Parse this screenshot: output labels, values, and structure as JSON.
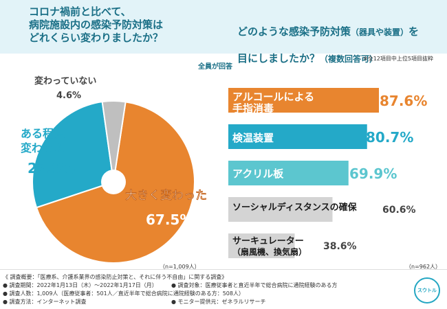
{
  "left_question": "コロナ禍前と比べて、\n病院施設内の感染予防対策は\nどれくらい変わりましたか？",
  "right_question": {
    "main": "どのような感染予防対策",
    "paren": "（器具や装置）",
    "after": "を",
    "line2": "目にしましたか？",
    "line2_sub": "（複数回答可）"
  },
  "top_note": "※全12項目中上位5項目抜粋",
  "badge": "全員が回答",
  "n_left": "（n=1,009人）",
  "n_right": "（n=962人）",
  "colors": {
    "orange": "#e8852f",
    "teal": "#24a9c8",
    "light_teal": "#5cc6cf",
    "gray": "#bfbfbf",
    "light_gray": "#d4d4d4",
    "title": "#1a6f86"
  },
  "chart_data": [
    {
      "type": "pie",
      "categories": [
        "大きく変わった",
        "ある程度変わった",
        "変わっていない"
      ],
      "values": [
        67.5,
        27.9,
        4.6
      ],
      "unit": "%"
    },
    {
      "type": "bar",
      "orientation": "horizontal",
      "categories": [
        "アルコールによる手指消毒",
        "検温装置",
        "アクリル板",
        "ソーシャルディスタンスの確保",
        "サーキュレーター（扇風機、換気扇）"
      ],
      "values": [
        87.6,
        80.7,
        69.9,
        60.6,
        38.6
      ],
      "unit": "%"
    }
  ],
  "footer": {
    "summary": "《 調査概要：「医療系、介護系業界の感染防止対策と、それに伴う不自由」に関する調査》",
    "period": "● 調査期間：2022年1月13日（木）〜2022年1月17日（月）",
    "target": "● 調査対象：医療従事者と直近半年で総合病院に通院経験のある方",
    "count": "● 調査人数：1,009人（医療従事者：501人／直近半年で総合病院に通院経験のある方：508人）",
    "method": "● 調査方法：インターネット調査",
    "provider": "● モニター提供元：ゼネラルリサーチ"
  },
  "logo_text": "スウトル"
}
